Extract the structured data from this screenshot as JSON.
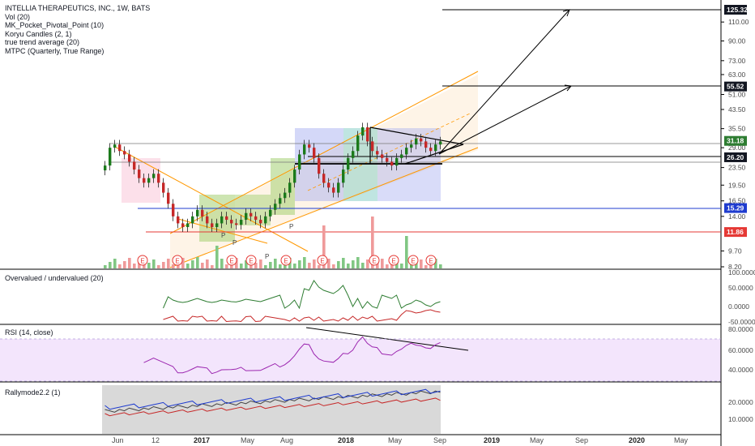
{
  "legend": {
    "title": "INTELLIA THERAPEUTICS, INC., 1W, BATS",
    "lines": [
      "Vol (20)",
      "MK_Pocket_Pivotal_Point (10)",
      "Koryu Candles (2, 1)",
      "true trend average (20)",
      "MTPC (Quarterly, True Range)"
    ]
  },
  "panes": {
    "overvalued": "Overvalued / undervalued (20)",
    "rsi": "RSI (14, close)",
    "rally": "Rallymode2.2 (1)"
  },
  "price_axis": {
    "labels": [
      "110.00",
      "90.00",
      "73.00",
      "63.00",
      "51.00",
      "43.50",
      "35.50",
      "29.00",
      "23.50",
      "19.50",
      "16.50",
      "14.00",
      "9.70",
      "8.20"
    ]
  },
  "price_tags": [
    {
      "text": "125.32",
      "color": "#131722"
    },
    {
      "text": "55.52",
      "color": "#131722"
    },
    {
      "text": "31.18",
      "color": "#2e7d32"
    },
    {
      "text": "26.20",
      "color": "#131722"
    },
    {
      "text": "15.29",
      "color": "#1f3ccf"
    },
    {
      "text": "11.86",
      "color": "#e53935"
    }
  ],
  "overvalued_axis": [
    "100.0000",
    "50.0000",
    "0.0000",
    "-50.0000"
  ],
  "rsi_axis": [
    "80.0000",
    "60.0000",
    "40.0000"
  ],
  "rally_axis": [
    "20.0000",
    "10.0000"
  ],
  "time_axis": [
    {
      "label": "Jun",
      "year": false
    },
    {
      "label": "12",
      "year": false
    },
    {
      "label": "2017",
      "year": true
    },
    {
      "label": "May",
      "year": false
    },
    {
      "label": "Aug",
      "year": false
    },
    {
      "label": "2018",
      "year": true
    },
    {
      "label": "May",
      "year": false
    },
    {
      "label": "Sep",
      "year": false
    },
    {
      "label": "2019",
      "year": true
    },
    {
      "label": "May",
      "year": false
    },
    {
      "label": "Sep",
      "year": false
    },
    {
      "label": "2020",
      "year": true
    },
    {
      "label": "May",
      "year": false
    }
  ],
  "markers": {
    "earnings": "E",
    "pivot": "P"
  },
  "chart_data": {
    "type": "candlestick",
    "title": "INTELLIA THERAPEUTICS, INC., 1W, BATS",
    "price_levels": [
      125.32,
      55.52,
      31.18,
      26.2,
      15.29,
      11.86
    ],
    "closes_approx": [
      24,
      29,
      30,
      28,
      27,
      25,
      23,
      21,
      20,
      21,
      22,
      20,
      18,
      16,
      14,
      13,
      12.5,
      13,
      14,
      15,
      14,
      13,
      12.5,
      13,
      14,
      13.5,
      13,
      12.8,
      13.5,
      14.5,
      14,
      13.5,
      13,
      14,
      15,
      16,
      17,
      18,
      20,
      23,
      27,
      30,
      29,
      26,
      22,
      20,
      19,
      18,
      20,
      23,
      26,
      28,
      33,
      36,
      31,
      28,
      27,
      26,
      25,
      24,
      26,
      27,
      29,
      30,
      32,
      31,
      29,
      28,
      30,
      31
    ]
  }
}
